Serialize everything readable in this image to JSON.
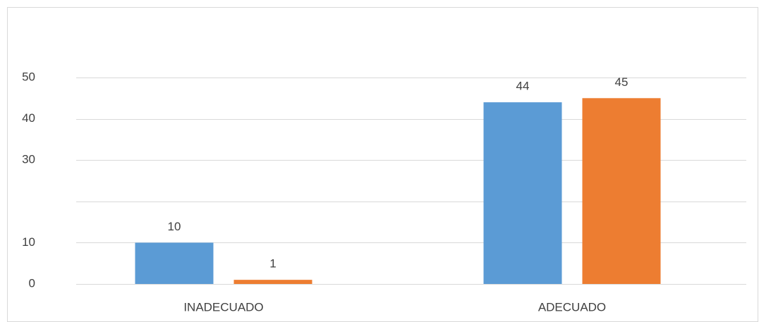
{
  "chart_data": {
    "type": "bar",
    "categories": [
      "INADECUADO",
      "ADECUADO"
    ],
    "series": [
      {
        "color": "#5b9bd5",
        "values": [
          10,
          44
        ]
      },
      {
        "color": "#ed7d31",
        "values": [
          1,
          45
        ]
      }
    ],
    "ylim": [
      0,
      50
    ],
    "yticks": [
      0,
      10,
      30,
      40,
      50
    ],
    "ygrid": [
      0,
      10,
      20,
      30,
      40,
      50
    ],
    "grid": true
  }
}
